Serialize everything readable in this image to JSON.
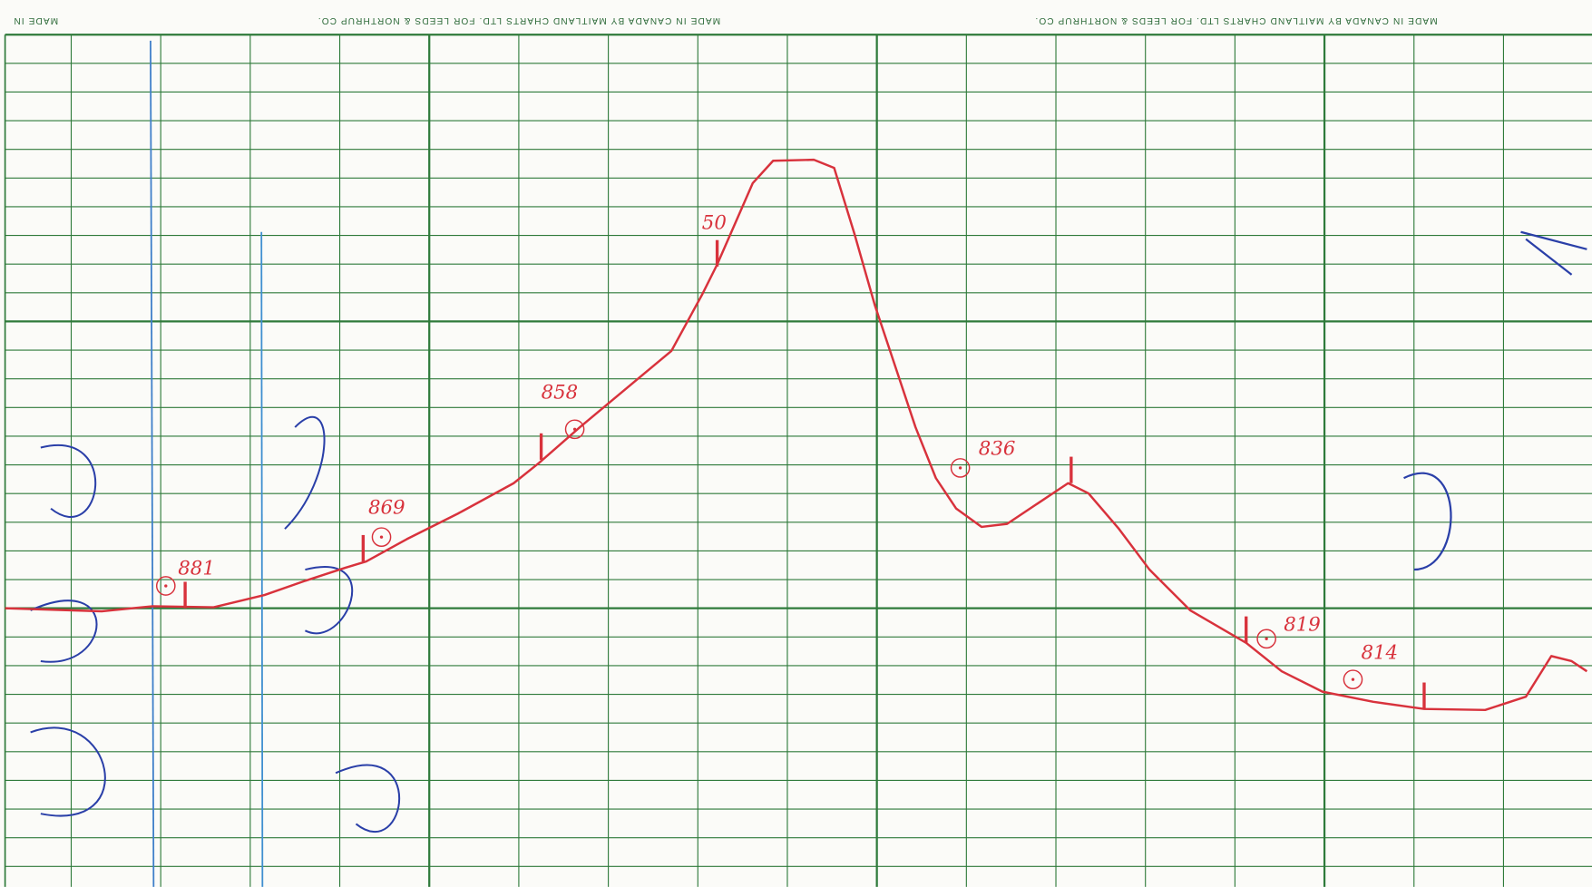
{
  "header": {
    "left": "MADE IN",
    "center": "MADE IN CANADA BY MAITLAND CHARTS LTD. FOR LEEDS & NORTHRUP CO.",
    "right": "MADE IN CANADA BY MAITLAND CHARTS LTD. FOR LEEDS & NORTHRUP CO."
  },
  "annotations": [
    "881",
    "869",
    "858",
    "50",
    "836",
    "819",
    "814"
  ]
}
